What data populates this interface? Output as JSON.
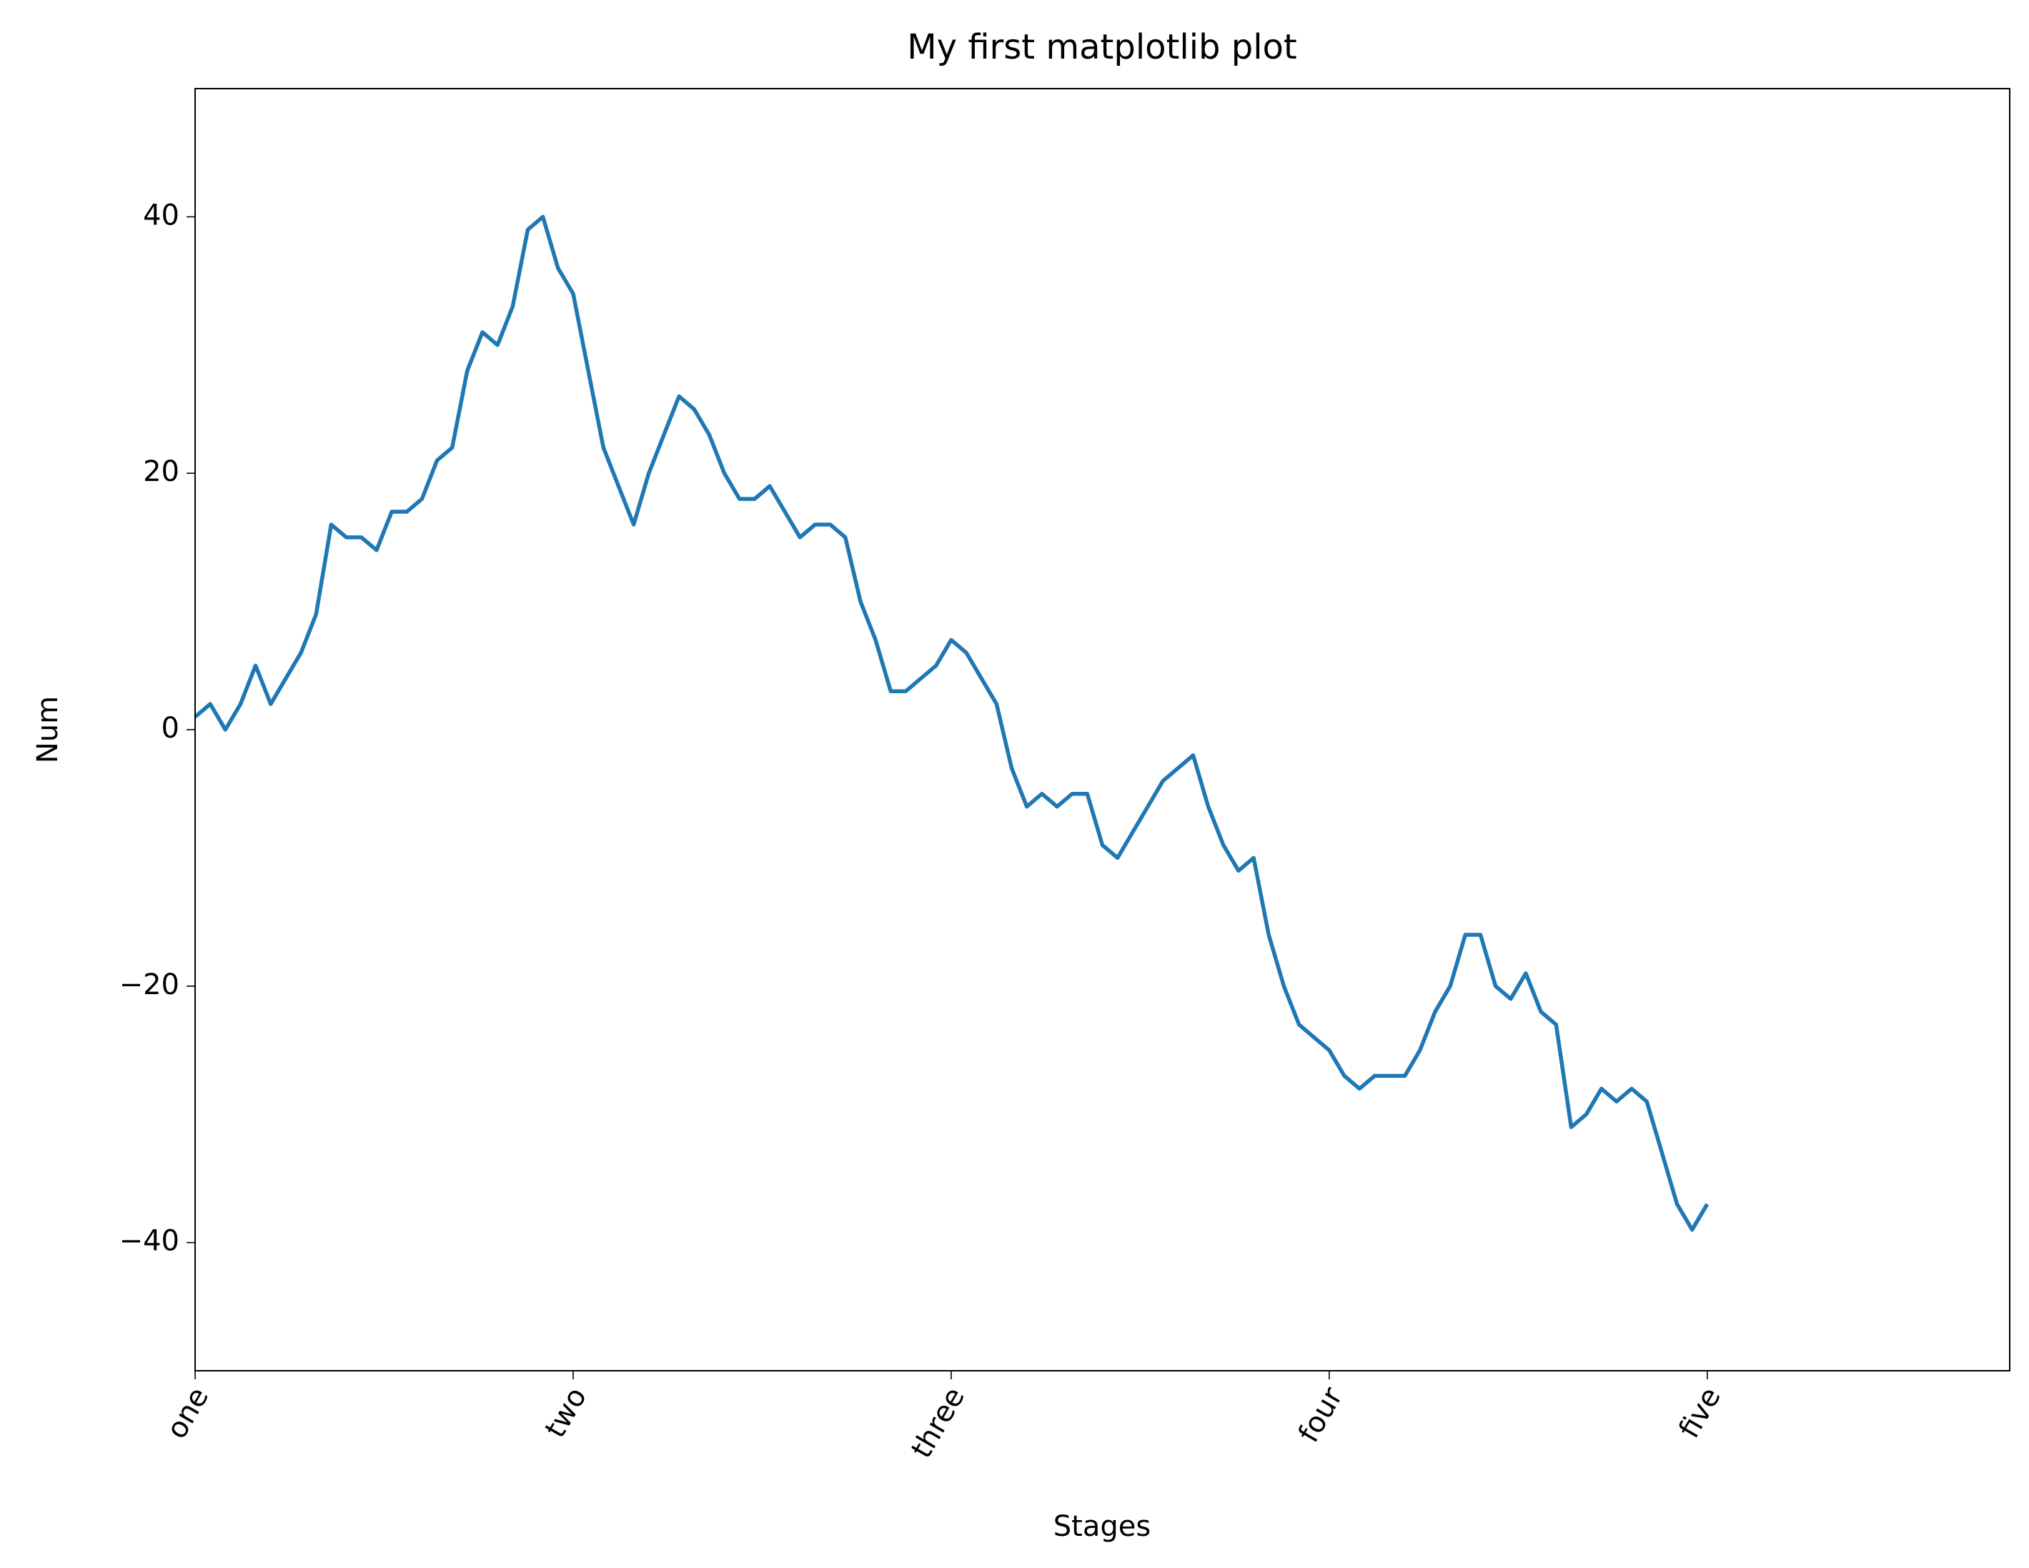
{
  "chart_data": {
    "type": "line",
    "title": "My first matplotlib plot",
    "xlabel": "Stages",
    "ylabel": "Num",
    "x": [
      0,
      10,
      20,
      30,
      40,
      50,
      60,
      70,
      80,
      90,
      100,
      110,
      120,
      130,
      140,
      150,
      160,
      170,
      180,
      190,
      200,
      210,
      220,
      230,
      240,
      250,
      260,
      270,
      280,
      290,
      300,
      310,
      320,
      330,
      340,
      350,
      360,
      370,
      380,
      390,
      400,
      410,
      420,
      430,
      440,
      450,
      460,
      470,
      480,
      490,
      500,
      510,
      520,
      530,
      540,
      550,
      560,
      570,
      580,
      590,
      600,
      610,
      620,
      630,
      640,
      650,
      660,
      670,
      680,
      690,
      700,
      710,
      720,
      730,
      740,
      750,
      760,
      770,
      780,
      790,
      800,
      810,
      820,
      830,
      840,
      850,
      860,
      870,
      880,
      890,
      900,
      910,
      920,
      930,
      940,
      950,
      960,
      970,
      980,
      990,
      1000
    ],
    "series": [
      {
        "color": "#1f77b4",
        "values": [
          1,
          2,
          0,
          2,
          5,
          2,
          4,
          6,
          9,
          16,
          15,
          15,
          14,
          17,
          17,
          18,
          21,
          22,
          28,
          31,
          30,
          33,
          39,
          40,
          36,
          34,
          28,
          22,
          19,
          16,
          20,
          23,
          26,
          25,
          23,
          20,
          18,
          18,
          19,
          17,
          15,
          16,
          16,
          15,
          10,
          7,
          3,
          3,
          4,
          5,
          7,
          6,
          4,
          2,
          -3,
          -6,
          -5,
          -6,
          -5,
          -5,
          -9,
          -10,
          -8,
          -6,
          -4,
          -3,
          -2,
          -6,
          -9,
          -11,
          -10,
          -16,
          -20,
          -23,
          -24,
          -25,
          -27,
          -28,
          -27,
          -27,
          -27,
          -25,
          -22,
          -20,
          -16,
          -16,
          -20,
          -21,
          -19,
          -22,
          -23,
          -31,
          -30,
          -28,
          -29,
          -28,
          -29,
          -33,
          -37,
          -39,
          -37
        ]
      }
    ],
    "xlim": [
      0,
      1200
    ],
    "ylim": [
      -50,
      50
    ],
    "xticks": [
      {
        "value": 0,
        "label": "one"
      },
      {
        "value": 250,
        "label": "two"
      },
      {
        "value": 500,
        "label": "three"
      },
      {
        "value": 750,
        "label": "four"
      },
      {
        "value": 1000,
        "label": "five"
      }
    ],
    "yticks": [
      {
        "value": -40,
        "label": "−40"
      },
      {
        "value": -20,
        "label": "−20"
      },
      0,
      20,
      40
    ]
  }
}
